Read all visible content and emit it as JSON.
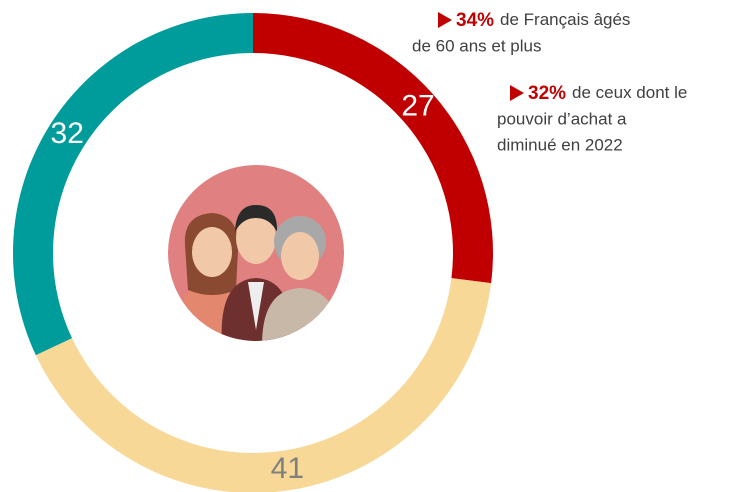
{
  "chart_data": {
    "type": "donut",
    "values": [
      27,
      41,
      32
    ],
    "colors": [
      "#c00000",
      "#f7d896",
      "#009b9b"
    ],
    "annotations": [
      {
        "highlight": "34%",
        "lines": [
          "de Français âgés",
          "de 60 ans et plus"
        ]
      },
      {
        "highlight": "32%",
        "lines": [
          "de ceux dont le",
          "pouvoir d’achat a",
          "diminué en 2022"
        ]
      }
    ]
  }
}
